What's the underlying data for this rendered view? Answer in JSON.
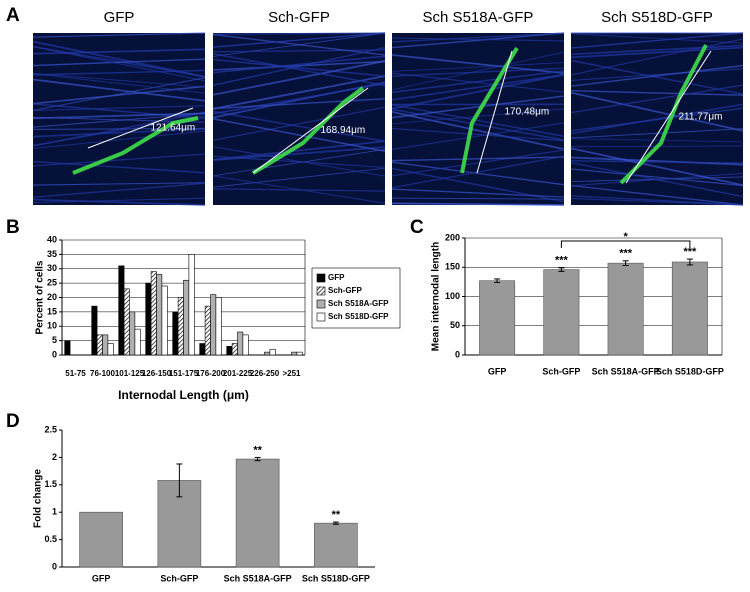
{
  "panel_labels": [
    "A",
    "B",
    "C",
    "D"
  ],
  "images": [
    {
      "title": "GFP",
      "measure": "121.64μm"
    },
    {
      "title": "Sch-GFP",
      "measure": "168.94μm"
    },
    {
      "title": "Sch S518A-GFP",
      "measure": "170.48μm"
    },
    {
      "title": "Sch S518D-GFP",
      "measure": "211.77μm"
    }
  ],
  "chart_data": [
    {
      "type": "bar",
      "ylabel": "Percent of cells",
      "xlabel": "Internodal Length (μm)",
      "categories": [
        "51-75",
        "76-100",
        "101-125",
        "126-150",
        "151-175",
        "176-200",
        "201-225",
        "226-250",
        ">251"
      ],
      "series": [
        {
          "name": "GFP",
          "color": "#000000",
          "values": [
            5,
            17,
            31,
            25,
            15,
            4,
            3,
            0,
            0
          ]
        },
        {
          "name": "Sch-GFP",
          "color": "#ffffff",
          "pattern": "hatch",
          "values": [
            0,
            7,
            23,
            29,
            20,
            17,
            4,
            0,
            0
          ]
        },
        {
          "name": "Sch S518A-GFP",
          "color": "#b0b0b0",
          "values": [
            0,
            7,
            15,
            28,
            26,
            21,
            8,
            1,
            1
          ]
        },
        {
          "name": "Sch S518D-GFP",
          "color": "#ffffff",
          "values": [
            0,
            4,
            9,
            24,
            35,
            20,
            7,
            2,
            1
          ]
        }
      ],
      "ylim": [
        0,
        40
      ],
      "yticks": [
        0,
        5,
        10,
        15,
        20,
        25,
        30,
        35,
        40
      ],
      "grid": true,
      "legend": "right"
    },
    {
      "type": "bar",
      "ylabel": "Mean internodal length",
      "categories": [
        "GFP",
        "Sch-GFP",
        "Sch S518A-GFP",
        "Sch S518D-GFP"
      ],
      "values": [
        127,
        146,
        157,
        159
      ],
      "errors": [
        3,
        3,
        4,
        5
      ],
      "color": "#999999",
      "significance": [
        null,
        "***",
        "***",
        "***"
      ],
      "bracket_label": "*",
      "ylim": [
        0,
        200
      ],
      "yticks": [
        0,
        50,
        100,
        150,
        200
      ],
      "grid": true
    },
    {
      "type": "bar",
      "ylabel": "Fold change",
      "categories": [
        "GFP",
        "Sch-GFP",
        "Sch S518A-GFP",
        "Sch S518D-GFP"
      ],
      "values": [
        1,
        1.58,
        1.97,
        0.8
      ],
      "errors": [
        0,
        0.3,
        0.03,
        0.02
      ],
      "color": "#999999",
      "significance": [
        null,
        null,
        "**",
        "**"
      ],
      "ylim": [
        0,
        2.5
      ],
      "yticks": [
        0,
        0.5,
        1,
        1.5,
        2,
        2.5
      ],
      "grid": false
    }
  ]
}
